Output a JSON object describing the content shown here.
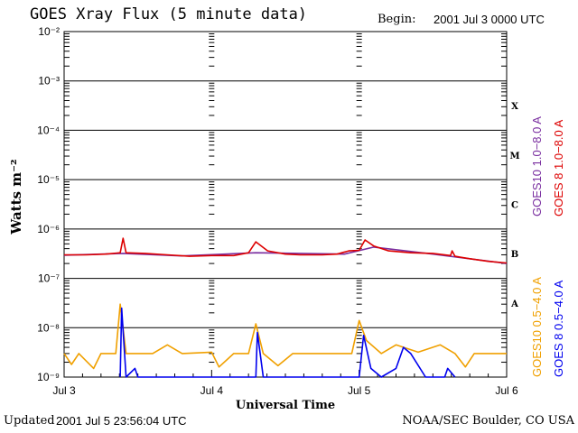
{
  "header": {
    "title": "GOES Xray Flux (5 minute data)",
    "begin_label": "Begin:",
    "begin_value": "2001 Jul 3 0000 UTC"
  },
  "footer": {
    "updated_label": "Updated",
    "updated_value": "2001 Jul  5 23:56:04 UTC",
    "credit": "NOAA/SEC Boulder, CO USA"
  },
  "chart_data": {
    "type": "line",
    "title": "GOES Xray Flux (5 minute data)",
    "xlabel": "Universal Time",
    "ylabel": "Watts m⁻²",
    "y_scale": "log",
    "ylim": [
      1e-09,
      0.01
    ],
    "xlim_days": [
      0,
      3
    ],
    "x_ticks": [
      {
        "day": 0,
        "label": "Jul 3"
      },
      {
        "day": 1,
        "label": "Jul 4"
      },
      {
        "day": 2,
        "label": "Jul 5"
      },
      {
        "day": 3,
        "label": "Jul 6"
      }
    ],
    "y_ticks": [
      {
        "exp": -2,
        "label": "10⁻²"
      },
      {
        "exp": -3,
        "label": "10⁻³"
      },
      {
        "exp": -4,
        "label": "10⁻⁴"
      },
      {
        "exp": -5,
        "label": "10⁻⁵"
      },
      {
        "exp": -6,
        "label": "10⁻⁶"
      },
      {
        "exp": -7,
        "label": "10⁻⁷"
      },
      {
        "exp": -8,
        "label": "10⁻⁸"
      },
      {
        "exp": -9,
        "label": "10⁻⁹"
      }
    ],
    "flare_classes": [
      {
        "label": "X",
        "exp": -4
      },
      {
        "label": "M",
        "exp": -5
      },
      {
        "label": "C",
        "exp": -6
      },
      {
        "label": "B",
        "exp": -7
      },
      {
        "label": "A",
        "exp": -8
      }
    ],
    "legend_placement": "right, rotated",
    "series": [
      {
        "name": "GOES 8 1.0–8.0 A",
        "color": "#dd0000",
        "points": [
          [
            0,
            3e-07
          ],
          [
            0.15,
            3e-07
          ],
          [
            0.28,
            3.1e-07
          ],
          [
            0.38,
            3.3e-07
          ],
          [
            0.4,
            6.5e-07
          ],
          [
            0.42,
            3.3e-07
          ],
          [
            0.55,
            3.2e-07
          ],
          [
            0.7,
            3e-07
          ],
          [
            0.85,
            2.8e-07
          ],
          [
            1.0,
            2.9e-07
          ],
          [
            1.15,
            2.9e-07
          ],
          [
            1.25,
            3.3e-07
          ],
          [
            1.3,
            5.5e-07
          ],
          [
            1.38,
            3.6e-07
          ],
          [
            1.5,
            3.1e-07
          ],
          [
            1.6,
            3e-07
          ],
          [
            1.75,
            3e-07
          ],
          [
            1.85,
            3.1e-07
          ],
          [
            1.93,
            3.6e-07
          ],
          [
            2.0,
            3.7e-07
          ],
          [
            2.04,
            6e-07
          ],
          [
            2.1,
            4.5e-07
          ],
          [
            2.2,
            3.6e-07
          ],
          [
            2.35,
            3.3e-07
          ],
          [
            2.5,
            3.2e-07
          ],
          [
            2.62,
            2.9e-07
          ],
          [
            2.63,
            3.6e-07
          ],
          [
            2.65,
            2.8e-07
          ],
          [
            2.75,
            2.5e-07
          ],
          [
            2.88,
            2.2e-07
          ],
          [
            3.0,
            2.05e-07
          ]
        ]
      },
      {
        "name": "GOES10 1.0–8.0 A",
        "color": "#7a2fa0",
        "points": [
          [
            0,
            2.95e-07
          ],
          [
            0.4,
            3.2e-07
          ],
          [
            0.8,
            2.85e-07
          ],
          [
            1.3,
            3.3e-07
          ],
          [
            1.9,
            3.1e-07
          ],
          [
            2.1,
            4.3e-07
          ],
          [
            2.5,
            3.1e-07
          ],
          [
            3.0,
            2e-07
          ]
        ]
      },
      {
        "name": "GOES10 0.5–4.0 A",
        "color": "#f0a000",
        "points": [
          [
            0,
            3e-09
          ],
          [
            0.05,
            1.8e-09
          ],
          [
            0.1,
            3e-09
          ],
          [
            0.2,
            1.5e-09
          ],
          [
            0.25,
            3e-09
          ],
          [
            0.35,
            3e-09
          ],
          [
            0.38,
            3e-08
          ],
          [
            0.42,
            3e-09
          ],
          [
            0.6,
            3e-09
          ],
          [
            0.7,
            4.5e-09
          ],
          [
            0.8,
            3e-09
          ],
          [
            1.0,
            3.2e-09
          ],
          [
            1.05,
            1.6e-09
          ],
          [
            1.15,
            3e-09
          ],
          [
            1.25,
            3e-09
          ],
          [
            1.3,
            1.2e-08
          ],
          [
            1.35,
            3e-09
          ],
          [
            1.45,
            1.7e-09
          ],
          [
            1.55,
            3e-09
          ],
          [
            1.75,
            3e-09
          ],
          [
            1.95,
            3e-09
          ],
          [
            2.0,
            1.4e-08
          ],
          [
            2.05,
            5.5e-09
          ],
          [
            2.15,
            3e-09
          ],
          [
            2.25,
            4.5e-09
          ],
          [
            2.4,
            3.2e-09
          ],
          [
            2.55,
            4.5e-09
          ],
          [
            2.65,
            3e-09
          ],
          [
            2.72,
            1.6e-09
          ],
          [
            2.78,
            3e-09
          ],
          [
            3.0,
            3e-09
          ]
        ]
      },
      {
        "name": "GOES 8 0.5–4.0 A",
        "color": "#0000ee",
        "points": [
          [
            0.38,
            1e-09
          ],
          [
            0.39,
            2.5e-08
          ],
          [
            0.42,
            1e-09
          ],
          [
            0.48,
            1.5e-09
          ],
          [
            0.5,
            1e-09
          ],
          [
            1.3,
            1e-09
          ],
          [
            1.31,
            8e-09
          ],
          [
            1.35,
            1e-09
          ],
          [
            2.0,
            1e-09
          ],
          [
            2.03,
            7e-09
          ],
          [
            2.08,
            1.5e-09
          ],
          [
            2.15,
            1e-09
          ],
          [
            2.25,
            1.5e-09
          ],
          [
            2.3,
            4e-09
          ],
          [
            2.35,
            3e-09
          ],
          [
            2.45,
            1e-09
          ],
          [
            2.58,
            1e-09
          ],
          [
            2.6,
            1.5e-09
          ],
          [
            2.65,
            1e-09
          ]
        ]
      }
    ]
  },
  "legend": {
    "goes10_long": "GOES10 1.0−8.0 A",
    "goes8_long": "GOES 8 1.0−8.0 A",
    "goes10_short": "GOES10 0.5−4.0 A",
    "goes8_short": "GOES 8 0.5−4.0 A",
    "colors": {
      "goes10_long": "#7a2fa0",
      "goes8_long": "#dd0000",
      "goes10_short": "#f0a000",
      "goes8_short": "#0000ee"
    }
  }
}
